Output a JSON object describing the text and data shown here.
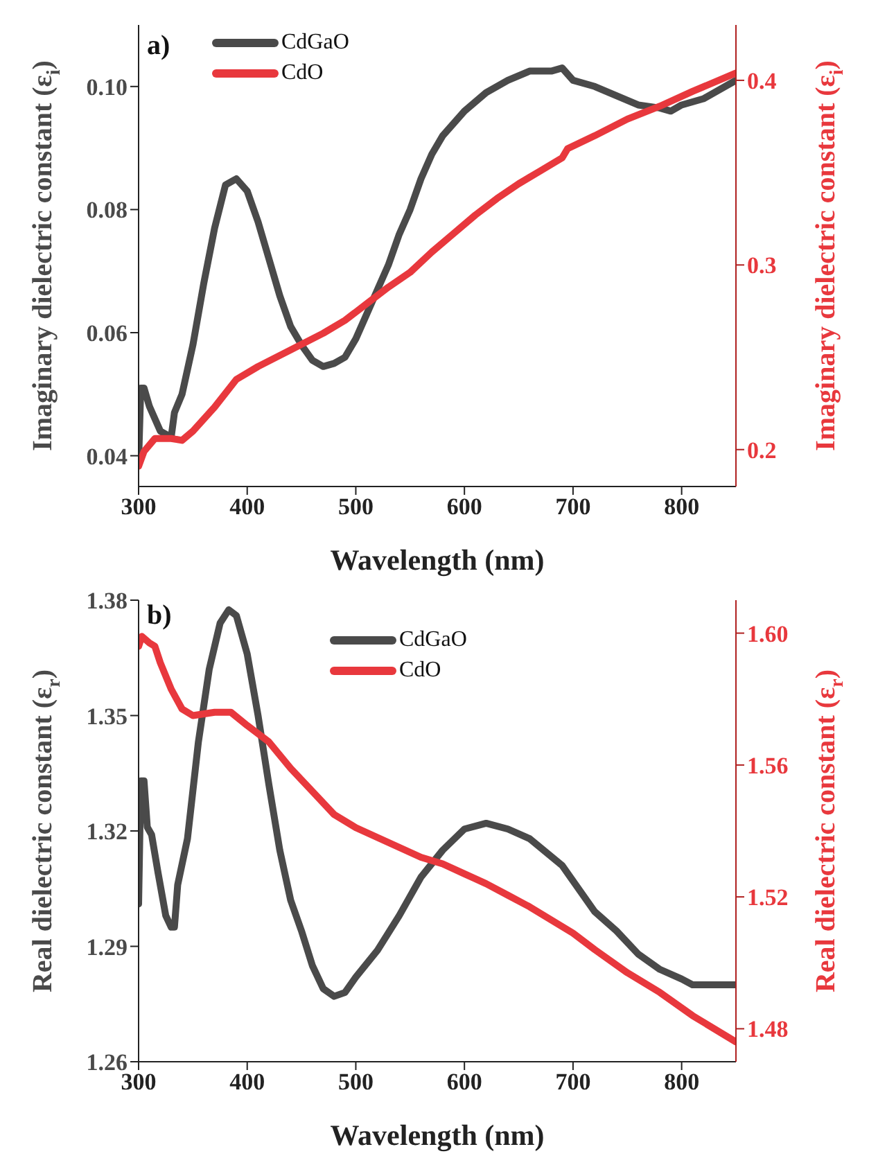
{
  "chart_data": [
    {
      "type": "line",
      "xlabel": "Wavelength (nm)",
      "ylabel": "Imaginary dielectric constant (ε$_{i}$)",
      "y2label": "Imaginary dielectric constant (ε$_{i}$)",
      "annotations": [
        "a)"
      ],
      "xlim": [
        300,
        850
      ],
      "xticks": [
        300,
        400,
        500,
        600,
        700,
        800
      ],
      "ylim": [
        0.035,
        0.11
      ],
      "yticks": [
        0.04,
        0.06,
        0.08,
        {
          "value": 0.1,
          "label": "0.10"
        }
      ],
      "y2lim": [
        0.18,
        0.43
      ],
      "y2ticks": [
        0.2,
        0.3,
        0.4
      ],
      "legend": "top left",
      "grid": false,
      "series": [
        {
          "name": "CdGaO",
          "color": "#4a4a4a",
          "x": [
            300,
            302,
            305,
            310,
            320,
            330,
            333,
            340,
            350,
            360,
            370,
            380,
            390,
            400,
            410,
            420,
            430,
            440,
            450,
            460,
            470,
            480,
            490,
            500,
            510,
            520,
            530,
            540,
            550,
            560,
            570,
            580,
            590,
            600,
            620,
            640,
            660,
            680,
            690,
            700,
            720,
            740,
            760,
            780,
            790,
            800,
            820,
            850
          ],
          "values": [
            0.039,
            0.051,
            0.051,
            0.048,
            0.044,
            0.043,
            0.047,
            0.05,
            0.058,
            0.068,
            0.077,
            0.084,
            0.085,
            0.083,
            0.078,
            0.072,
            0.066,
            0.061,
            0.058,
            0.0555,
            0.0545,
            0.055,
            0.056,
            0.059,
            0.063,
            0.067,
            0.071,
            0.076,
            0.08,
            0.085,
            0.089,
            0.092,
            0.094,
            0.096,
            0.099,
            0.101,
            0.1025,
            0.1025,
            0.103,
            0.101,
            0.1,
            0.0985,
            0.097,
            0.0965,
            0.096,
            0.097,
            0.098,
            0.101
          ]
        },
        {
          "name": "CdO",
          "color": "#e8383d",
          "axis": "y2",
          "x": [
            300,
            305,
            315,
            330,
            340,
            350,
            370,
            390,
            410,
            430,
            450,
            470,
            490,
            510,
            530,
            550,
            570,
            590,
            610,
            630,
            650,
            670,
            690,
            695,
            720,
            750,
            780,
            810,
            850
          ],
          "values": [
            0.191,
            0.199,
            0.206,
            0.206,
            0.205,
            0.21,
            0.223,
            0.238,
            0.245,
            0.251,
            0.257,
            0.263,
            0.27,
            0.279,
            0.288,
            0.296,
            0.307,
            0.317,
            0.327,
            0.336,
            0.344,
            0.351,
            0.358,
            0.363,
            0.37,
            0.379,
            0.386,
            0.394,
            0.404
          ]
        }
      ]
    },
    {
      "type": "line",
      "xlabel": "Wavelength (nm)",
      "ylabel": "Real dielectric constant (ε$_{r}$)",
      "y2label": "Real dielectric constant (ε$_{r}$)",
      "annotations": [
        "b)"
      ],
      "xlim": [
        300,
        850
      ],
      "xticks": [
        300,
        400,
        500,
        600,
        700,
        800
      ],
      "ylim": [
        1.26,
        1.38
      ],
      "yticks": [
        1.26,
        1.29,
        1.32,
        1.35,
        1.38
      ],
      "y2lim": [
        1.47,
        1.61
      ],
      "y2ticks": [
        1.48,
        1.52,
        1.56,
        {
          "value": 1.6,
          "label": "1.60"
        }
      ],
      "legend": "top",
      "grid": false,
      "series": [
        {
          "name": "CdGaO",
          "color": "#4a4a4a",
          "x": [
            300,
            302,
            305,
            308,
            312,
            318,
            325,
            330,
            333,
            336,
            345,
            355,
            365,
            375,
            383,
            390,
            400,
            410,
            420,
            430,
            440,
            450,
            460,
            470,
            480,
            490,
            500,
            520,
            540,
            560,
            580,
            600,
            620,
            640,
            660,
            690,
            700,
            720,
            740,
            760,
            780,
            800,
            810,
            850
          ],
          "values": [
            1.301,
            1.333,
            1.333,
            1.321,
            1.319,
            1.309,
            1.298,
            1.295,
            1.295,
            1.306,
            1.318,
            1.343,
            1.362,
            1.374,
            1.3775,
            1.376,
            1.366,
            1.35,
            1.332,
            1.315,
            1.302,
            1.294,
            1.285,
            1.279,
            1.277,
            1.278,
            1.282,
            1.289,
            1.298,
            1.308,
            1.315,
            1.3205,
            1.322,
            1.3205,
            1.318,
            1.311,
            1.307,
            1.299,
            1.294,
            1.288,
            1.284,
            1.2815,
            1.28,
            1.28
          ]
        },
        {
          "name": "CdO",
          "color": "#e8383d",
          "axis": "y2",
          "x": [
            300,
            303,
            310,
            315,
            320,
            330,
            340,
            350,
            370,
            385,
            400,
            420,
            440,
            460,
            480,
            500,
            520,
            540,
            560,
            580,
            600,
            620,
            640,
            660,
            690,
            700,
            720,
            750,
            780,
            810,
            850
          ],
          "values": [
            1.596,
            1.599,
            1.597,
            1.596,
            1.591,
            1.583,
            1.577,
            1.575,
            1.576,
            1.576,
            1.572,
            1.567,
            1.559,
            1.552,
            1.545,
            1.541,
            1.538,
            1.535,
            1.532,
            1.53,
            1.527,
            1.524,
            1.5205,
            1.517,
            1.511,
            1.509,
            1.504,
            1.497,
            1.491,
            1.484,
            1.476
          ]
        }
      ]
    }
  ]
}
